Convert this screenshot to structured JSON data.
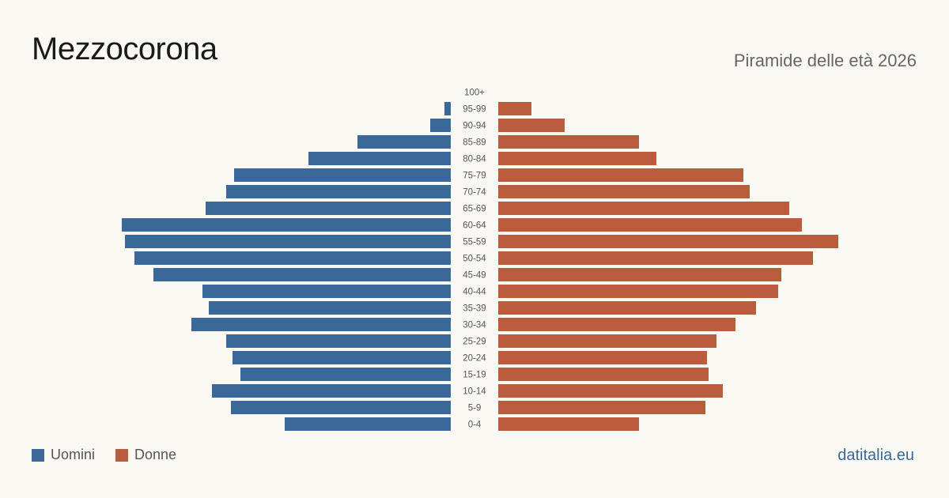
{
  "title": "Mezzocorona",
  "subtitle": "Piramide delle età 2026",
  "credit": "datitalia.eu",
  "colors": {
    "men": "#3a6898",
    "women": "#b95d3c",
    "label": "#555555"
  },
  "legend": {
    "men_label": "Uomini",
    "women_label": "Donne"
  },
  "chart_data": {
    "type": "bar",
    "orientation": "horizontal-pyramid",
    "categories": [
      "100+",
      "95-99",
      "90-94",
      "85-89",
      "80-84",
      "75-79",
      "70-74",
      "65-69",
      "60-64",
      "55-59",
      "50-54",
      "45-49",
      "40-44",
      "35-39",
      "30-34",
      "25-29",
      "20-24",
      "15-19",
      "10-14",
      "5-9",
      "0-4"
    ],
    "series": [
      {
        "name": "Uomini",
        "values": [
          0,
          4,
          13,
          59,
          90,
          137,
          142,
          155,
          208,
          206,
          200,
          188,
          157,
          153,
          164,
          142,
          138,
          133,
          151,
          139,
          105
        ]
      },
      {
        "name": "Donne",
        "values": [
          0,
          21,
          42,
          89,
          100,
          155,
          159,
          184,
          192,
          215,
          199,
          179,
          177,
          163,
          150,
          138,
          132,
          133,
          142,
          131,
          89
        ]
      }
    ],
    "xlim": [
      0,
      230
    ]
  }
}
